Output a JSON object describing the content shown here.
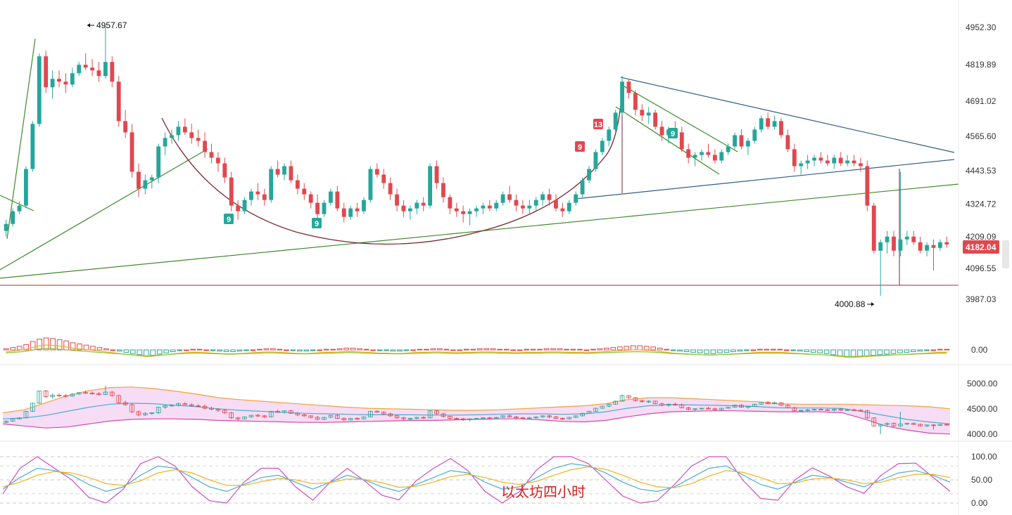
{
  "chart_data": {
    "type": "candlestick",
    "title": "",
    "watermark": "以太坊四小时",
    "colors": {
      "up": "#26a69a",
      "down": "#e0484f",
      "triangle": "#2f5f8a",
      "green_trend": "#3f8a2a",
      "arc": "#7a2730",
      "support": "#b02a2a",
      "boll_upper": "#f0a23a",
      "boll_lower": "#d14aa8",
      "boll_mid": "#4aaed0",
      "boll_fill": "#f7dcf5",
      "kdj_k": "#4aaed0",
      "kdj_d": "#f0b020",
      "kdj_j": "#c94fc0",
      "macd_pos": "#e0484f",
      "macd_neg": "#26a69a",
      "dif": "#f0b020",
      "dea": "#8ac43a"
    },
    "price_axis": {
      "ticks": [
        "4952.30",
        "4819.89",
        "4691.02",
        "4565.60",
        "4443.53",
        "4324.72",
        "4209.09",
        "4096.55",
        "3987.03"
      ],
      "current_price": "4182.04"
    },
    "macd_axis": {
      "ticks": [
        "0.00"
      ]
    },
    "boll_axis": {
      "ticks": [
        "5000.00",
        "4500.00",
        "4000.00"
      ]
    },
    "kdj_axis": {
      "ticks": [
        "100.00",
        "50.00",
        "0.00"
      ]
    },
    "annotations": {
      "high_label": "4957.67",
      "low_label": "4000.88",
      "td_counts": [
        "9",
        "9",
        "9",
        "13",
        "9"
      ]
    },
    "ohlc": [
      [
        4230,
        4270,
        4210,
        4255
      ],
      [
        4255,
        4310,
        4245,
        4300
      ],
      [
        4300,
        4335,
        4290,
        4320
      ],
      [
        4320,
        4460,
        4310,
        4450
      ],
      [
        4450,
        4620,
        4440,
        4610
      ],
      [
        4610,
        4860,
        4600,
        4850
      ],
      [
        4850,
        4870,
        4720,
        4740
      ],
      [
        4740,
        4800,
        4700,
        4770
      ],
      [
        4770,
        4800,
        4740,
        4760
      ],
      [
        4760,
        4790,
        4720,
        4750
      ],
      [
        4750,
        4810,
        4740,
        4790
      ],
      [
        4790,
        4830,
        4780,
        4820
      ],
      [
        4820,
        4860,
        4800,
        4810
      ],
      [
        4810,
        4840,
        4780,
        4800
      ],
      [
        4800,
        4830,
        4760,
        4780
      ],
      [
        4780,
        4957,
        4770,
        4830
      ],
      [
        4830,
        4850,
        4740,
        4760
      ],
      [
        4760,
        4780,
        4600,
        4620
      ],
      [
        4620,
        4660,
        4560,
        4580
      ],
      [
        4580,
        4610,
        4420,
        4440
      ],
      [
        4440,
        4470,
        4350,
        4380
      ],
      [
        4380,
        4430,
        4360,
        4410
      ],
      [
        4410,
        4430,
        4380,
        4420
      ],
      [
        4420,
        4540,
        4400,
        4530
      ],
      [
        4530,
        4580,
        4500,
        4560
      ],
      [
        4560,
        4590,
        4540,
        4570
      ],
      [
        4570,
        4620,
        4550,
        4600
      ],
      [
        4600,
        4630,
        4570,
        4580
      ],
      [
        4580,
        4610,
        4540,
        4560
      ],
      [
        4560,
        4590,
        4530,
        4550
      ],
      [
        4550,
        4580,
        4490,
        4510
      ],
      [
        4510,
        4540,
        4470,
        4490
      ],
      [
        4490,
        4510,
        4440,
        4470
      ],
      [
        4470,
        4490,
        4400,
        4420
      ],
      [
        4420,
        4440,
        4300,
        4320
      ],
      [
        4320,
        4340,
        4270,
        4300
      ],
      [
        4300,
        4350,
        4290,
        4340
      ],
      [
        4340,
        4380,
        4320,
        4370
      ],
      [
        4370,
        4400,
        4340,
        4360
      ],
      [
        4360,
        4380,
        4320,
        4340
      ],
      [
        4340,
        4460,
        4330,
        4450
      ],
      [
        4450,
        4480,
        4420,
        4430
      ],
      [
        4430,
        4470,
        4410,
        4460
      ],
      [
        4460,
        4480,
        4400,
        4410
      ],
      [
        4410,
        4430,
        4360,
        4380
      ],
      [
        4380,
        4400,
        4340,
        4360
      ],
      [
        4360,
        4370,
        4310,
        4330
      ],
      [
        4330,
        4360,
        4270,
        4290
      ],
      [
        4290,
        4340,
        4280,
        4330
      ],
      [
        4330,
        4380,
        4320,
        4370
      ],
      [
        4370,
        4390,
        4300,
        4310
      ],
      [
        4310,
        4330,
        4260,
        4280
      ],
      [
        4280,
        4320,
        4270,
        4310
      ],
      [
        4310,
        4330,
        4280,
        4300
      ],
      [
        4300,
        4350,
        4290,
        4340
      ],
      [
        4340,
        4460,
        4330,
        4450
      ],
      [
        4450,
        4470,
        4420,
        4430
      ],
      [
        4430,
        4450,
        4380,
        4400
      ],
      [
        4400,
        4420,
        4340,
        4360
      ],
      [
        4360,
        4380,
        4300,
        4320
      ],
      [
        4320,
        4340,
        4280,
        4300
      ],
      [
        4300,
        4320,
        4270,
        4310
      ],
      [
        4310,
        4340,
        4290,
        4330
      ],
      [
        4330,
        4350,
        4300,
        4320
      ],
      [
        4320,
        4470,
        4310,
        4460
      ],
      [
        4460,
        4480,
        4380,
        4400
      ],
      [
        4400,
        4420,
        4330,
        4350
      ],
      [
        4350,
        4360,
        4290,
        4310
      ],
      [
        4310,
        4330,
        4280,
        4300
      ],
      [
        4300,
        4320,
        4260,
        4290
      ],
      [
        4290,
        4310,
        4250,
        4300
      ],
      [
        4300,
        4320,
        4280,
        4310
      ],
      [
        4310,
        4330,
        4290,
        4320
      ],
      [
        4320,
        4340,
        4300,
        4310
      ],
      [
        4310,
        4340,
        4300,
        4330
      ],
      [
        4330,
        4370,
        4320,
        4360
      ],
      [
        4360,
        4390,
        4330,
        4340
      ],
      [
        4340,
        4360,
        4300,
        4320
      ],
      [
        4320,
        4340,
        4290,
        4310
      ],
      [
        4310,
        4340,
        4290,
        4320
      ],
      [
        4320,
        4350,
        4300,
        4340
      ],
      [
        4340,
        4370,
        4320,
        4360
      ],
      [
        4360,
        4380,
        4320,
        4340
      ],
      [
        4340,
        4360,
        4300,
        4310
      ],
      [
        4310,
        4330,
        4280,
        4300
      ],
      [
        4300,
        4340,
        4290,
        4330
      ],
      [
        4330,
        4370,
        4320,
        4360
      ],
      [
        4360,
        4420,
        4350,
        4410
      ],
      [
        4410,
        4460,
        4400,
        4450
      ],
      [
        4450,
        4520,
        4440,
        4510
      ],
      [
        4510,
        4560,
        4500,
        4550
      ],
      [
        4550,
        4600,
        4530,
        4590
      ],
      [
        4590,
        4660,
        4580,
        4650
      ],
      [
        4650,
        4780,
        4640,
        4760
      ],
      [
        4760,
        4770,
        4700,
        4720
      ],
      [
        4720,
        4730,
        4640,
        4660
      ],
      [
        4660,
        4680,
        4620,
        4640
      ],
      [
        4640,
        4670,
        4610,
        4650
      ],
      [
        4650,
        4660,
        4590,
        4600
      ],
      [
        4600,
        4620,
        4550,
        4570
      ],
      [
        4570,
        4600,
        4540,
        4590
      ],
      [
        4590,
        4620,
        4560,
        4580
      ],
      [
        4580,
        4600,
        4510,
        4520
      ],
      [
        4520,
        4540,
        4470,
        4490
      ],
      [
        4490,
        4510,
        4460,
        4500
      ],
      [
        4500,
        4520,
        4480,
        4510
      ],
      [
        4510,
        4540,
        4490,
        4500
      ],
      [
        4500,
        4520,
        4470,
        4480
      ],
      [
        4480,
        4520,
        4470,
        4510
      ],
      [
        4510,
        4540,
        4500,
        4530
      ],
      [
        4530,
        4580,
        4520,
        4570
      ],
      [
        4570,
        4590,
        4520,
        4530
      ],
      [
        4530,
        4560,
        4500,
        4550
      ],
      [
        4550,
        4600,
        4540,
        4590
      ],
      [
        4590,
        4640,
        4580,
        4630
      ],
      [
        4630,
        4650,
        4590,
        4600
      ],
      [
        4600,
        4640,
        4590,
        4620
      ],
      [
        4620,
        4630,
        4560,
        4570
      ],
      [
        4570,
        4590,
        4510,
        4520
      ],
      [
        4520,
        4540,
        4440,
        4460
      ],
      [
        4460,
        4480,
        4430,
        4470
      ],
      [
        4470,
        4500,
        4450,
        4480
      ],
      [
        4480,
        4500,
        4460,
        4490
      ],
      [
        4490,
        4510,
        4470,
        4480
      ],
      [
        4480,
        4500,
        4460,
        4470
      ],
      [
        4470,
        4500,
        4450,
        4490
      ],
      [
        4490,
        4510,
        4460,
        4470
      ],
      [
        4470,
        4500,
        4460,
        4480
      ],
      [
        4480,
        4500,
        4460,
        4470
      ],
      [
        4470,
        4490,
        4440,
        4460
      ],
      [
        4460,
        4480,
        4300,
        4320
      ],
      [
        4320,
        4330,
        4150,
        4160
      ],
      [
        4160,
        4200,
        4000,
        4190
      ],
      [
        4190,
        4230,
        4150,
        4210
      ],
      [
        4210,
        4230,
        4140,
        4160
      ],
      [
        4160,
        4440,
        4140,
        4200
      ],
      [
        4200,
        4230,
        4180,
        4210
      ],
      [
        4210,
        4230,
        4180,
        4190
      ],
      [
        4190,
        4210,
        4150,
        4160
      ],
      [
        4160,
        4190,
        4140,
        4180
      ],
      [
        4180,
        4200,
        4090,
        4170
      ],
      [
        4170,
        4200,
        4160,
        4190
      ],
      [
        4190,
        4210,
        4170,
        4182
      ]
    ],
    "macd": {
      "hist": [
        2,
        4,
        6,
        9,
        14,
        18,
        20,
        19,
        17,
        15,
        12,
        10,
        8,
        6,
        4,
        2,
        0,
        -2,
        -4,
        -6,
        -8,
        -10,
        -9,
        -7,
        -5,
        -3,
        -1,
        0,
        1,
        1,
        0,
        -1,
        -2,
        -3,
        -3,
        -2,
        -1,
        0,
        1,
        2,
        2,
        1,
        0,
        -1,
        -2,
        -2,
        -1,
        0,
        1,
        1,
        2,
        3,
        3,
        2,
        1,
        0,
        -1,
        -1,
        -2,
        -2,
        -1,
        0,
        1,
        1,
        2,
        2,
        1,
        0,
        0,
        1,
        1,
        2,
        2,
        2,
        1,
        1,
        0,
        0,
        1,
        1,
        1,
        2,
        2,
        2,
        1,
        1,
        1,
        0,
        1,
        2,
        3,
        4,
        5,
        6,
        7,
        7,
        6,
        5,
        3,
        1,
        -1,
        -2,
        -3,
        -4,
        -5,
        -6,
        -6,
        -5,
        -4,
        -3,
        -2,
        -1,
        0,
        1,
        1,
        1,
        1,
        0,
        -1,
        -2,
        -3,
        -4,
        -5,
        -6,
        -8,
        -10,
        -12,
        -12,
        -11,
        -10,
        -9,
        -8,
        -7,
        -6,
        -5,
        -4,
        -3,
        -2,
        -1,
        0,
        1,
        1
      ]
    },
    "boll": {
      "upper": [
        4420,
        4480,
        4620,
        4760,
        4860,
        4920,
        4930,
        4900,
        4850,
        4790,
        4720,
        4680,
        4650,
        4620,
        4590,
        4560,
        4530,
        4510,
        4500,
        4490,
        4480,
        4470,
        4470,
        4480,
        4500,
        4520,
        4540,
        4560,
        4600,
        4680,
        4720,
        4720,
        4700,
        4680,
        4660,
        4640,
        4600,
        4590,
        4590,
        4590,
        4580,
        4570,
        4560,
        4540,
        4500
      ],
      "lower": [
        4200,
        4160,
        4120,
        4140,
        4200,
        4260,
        4290,
        4300,
        4300,
        4290,
        4270,
        4260,
        4250,
        4240,
        4230,
        4230,
        4240,
        4250,
        4260,
        4270,
        4270,
        4280,
        4290,
        4300,
        4300,
        4280,
        4250,
        4240,
        4270,
        4340,
        4400,
        4440,
        4450,
        4460,
        4460,
        4450,
        4440,
        4440,
        4440,
        4420,
        4300,
        4160,
        4080,
        4020,
        4000
      ],
      "mid": [
        4300,
        4320,
        4370,
        4450,
        4530,
        4590,
        4610,
        4600,
        4570,
        4540,
        4500,
        4470,
        4450,
        4430,
        4410,
        4400,
        4390,
        4380,
        4380,
        4380,
        4375,
        4375,
        4380,
        4390,
        4400,
        4400,
        4390,
        4400,
        4440,
        4510,
        4560,
        4580,
        4575,
        4570,
        4560,
        4545,
        4520,
        4515,
        4515,
        4505,
        4440,
        4365,
        4290,
        4240,
        4200
      ]
    },
    "kdj": {
      "k": [
        30,
        55,
        75,
        70,
        60,
        40,
        25,
        35,
        60,
        80,
        75,
        55,
        35,
        25,
        40,
        55,
        60,
        45,
        30,
        45,
        60,
        50,
        35,
        25,
        40,
        55,
        70,
        65,
        45,
        30,
        35,
        55,
        75,
        85,
        80,
        65,
        45,
        30,
        25,
        35,
        55,
        75,
        80,
        60,
        40,
        30,
        45,
        60,
        55,
        45,
        35,
        50,
        65,
        70,
        60,
        45
      ],
      "d": [
        35,
        45,
        60,
        68,
        65,
        55,
        42,
        38,
        48,
        65,
        72,
        65,
        50,
        38,
        38,
        46,
        53,
        50,
        42,
        44,
        52,
        51,
        44,
        34,
        36,
        45,
        57,
        62,
        55,
        45,
        40,
        47,
        60,
        72,
        78,
        73,
        60,
        45,
        35,
        33,
        42,
        58,
        70,
        66,
        55,
        42,
        43,
        52,
        54,
        50,
        42,
        45,
        55,
        62,
        62,
        55
      ],
      "j": [
        20,
        75,
        100,
        75,
        50,
        12,
        0,
        30,
        85,
        100,
        80,
        35,
        5,
        0,
        45,
        75,
        75,
        35,
        6,
        45,
        75,
        48,
        17,
        7,
        48,
        75,
        96,
        70,
        25,
        0,
        25,
        72,
        100,
        100,
        85,
        50,
        15,
        0,
        5,
        40,
        80,
        100,
        100,
        48,
        10,
        6,
        50,
        76,
        58,
        35,
        21,
        60,
        85,
        86,
        56,
        25
      ]
    }
  }
}
